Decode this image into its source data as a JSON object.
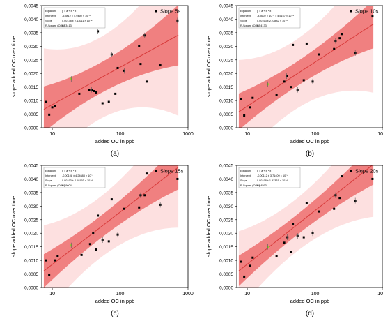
{
  "figure": {
    "panels": [
      {
        "caption": "(a)",
        "legend": "Slope 5s",
        "stats": {
          "equation": "y = a + b * x",
          "rows": [
            {
              "label": "Equation",
              "value": "y = a + b * x"
            },
            {
              "label": "Intercept",
              "value": "-5.3e12 ± 5.9460 × 10⁻⁴"
            },
            {
              "label": "Slope",
              "value": "0.00138 ± 2.13011 × 10⁻⁴"
            },
            {
              "label": "R-Square (COD)",
              "value": "0.53413"
            }
          ]
        }
      },
      {
        "caption": "(b)",
        "legend": "Slope 10s",
        "stats": {
          "rows": [
            {
              "label": "Equation",
              "value": "y = a + b * x"
            },
            {
              "label": "Intercept",
              "value": "-8.3602 × 10⁻⁴ ± 4.5167 × 10⁻⁴"
            },
            {
              "label": "Slope",
              "value": "0.00163 ± 2.72882 × 10⁻⁴"
            },
            {
              "label": "R-Square (COD)",
              "value": "0.74133"
            }
          ]
        }
      },
      {
        "caption": "(c)",
        "legend": "Slope 15s",
        "stats": {
          "rows": [
            {
              "label": "Equation",
              "value": "y = a + b * x"
            },
            {
              "label": "Intercept",
              "value": "-0.00108 ± 4.24688 × 10⁻⁴"
            },
            {
              "label": "Slope",
              "value": "0.00193 ± 2.19193 × 10⁻⁴"
            },
            {
              "label": "R-Square (COD)",
              "value": "0.79604"
            }
          ]
        }
      },
      {
        "caption": "(d)",
        "legend": "Slope 20s",
        "stats": {
          "rows": [
            {
              "label": "Equation",
              "value": "y = a + b * x"
            },
            {
              "label": "Intercept",
              "value": "-0.00112 ± 3.71409 × 10⁻⁴"
            },
            {
              "label": "Slope",
              "value": "0.00198 ± 1.92331 × 10⁻⁴"
            },
            {
              "label": "R-Square (COD)",
              "value": "0.84593"
            }
          ]
        }
      }
    ]
  },
  "colors": {
    "confidence_band": "#f08080",
    "prediction_band": "#fde0e0",
    "fit_line": "#d83a3a",
    "points": "#000000",
    "highlight_point": "#9acd32"
  },
  "chart_data": [
    {
      "type": "scatter",
      "xlabel": "added OC in ppb",
      "ylabel": "slope added OC over time",
      "xscale": "log",
      "xlim": [
        7,
        1000
      ],
      "ylim": [
        0,
        0.0045
      ],
      "xticks": [
        10,
        100,
        1000
      ],
      "xtick_labels": [
        "10",
        "100",
        "1000"
      ],
      "yticks": [
        0,
        0.0005,
        0.001,
        0.0015,
        0.002,
        0.0025,
        0.003,
        0.0035,
        0.004,
        0.0045
      ],
      "ytick_labels": [
        "0,0000",
        "0,0005",
        "0,0010",
        "0,0015",
        "0,0020",
        "0,0025",
        "0,0030",
        "0,0035",
        "0,0040",
        "0,0045"
      ],
      "series": [
        {
          "name": "Slope 5s",
          "x": [
            8,
            9,
            10,
            11,
            19,
            25,
            35,
            38,
            41,
            44,
            47,
            55,
            68,
            75,
            85,
            92,
            115,
            190,
            200,
            230,
            245,
            390,
            700
          ],
          "y": [
            0.00095,
            0.00048,
            0.00075,
            0.0008,
            0.0018,
            0.00125,
            0.0014,
            0.0014,
            0.00135,
            0.0013,
            0.00355,
            0.0009,
            0.00095,
            0.0027,
            0.00125,
            0.0022,
            0.0021,
            0.003,
            0.00235,
            0.0034,
            0.0017,
            0.0023,
            0.00395
          ]
        },
        {
          "name": "Slope 10s",
          "x": [
            8,
            9,
            11,
            12,
            20,
            27,
            35,
            38,
            44,
            47,
            55,
            68,
            75,
            92,
            115,
            190,
            200,
            230,
            245,
            390,
            700
          ],
          "y": [
            0.00105,
            0.00045,
            0.00075,
            0.0011,
            0.0016,
            0.0012,
            0.0017,
            0.0019,
            0.0015,
            0.00305,
            0.0014,
            0.00175,
            0.0031,
            0.0017,
            0.0027,
            0.0029,
            0.0032,
            0.0033,
            0.00345,
            0.00275,
            0.0041
          ]
        },
        {
          "name": "Slope 15s",
          "x": [
            8,
            9,
            11,
            12,
            19,
            27,
            36,
            40,
            44,
            47,
            55,
            68,
            75,
            92,
            115,
            190,
            200,
            230,
            245,
            390,
            700
          ],
          "y": [
            0.001,
            0.00045,
            0.001,
            0.00115,
            0.00155,
            0.0012,
            0.0016,
            0.002,
            0.0014,
            0.00265,
            0.00175,
            0.0017,
            0.00325,
            0.00195,
            0.0029,
            0.00295,
            0.0034,
            0.0034,
            0.0042,
            0.00305,
            0.004
          ]
        },
        {
          "name": "Slope 20s",
          "x": [
            8,
            9,
            11,
            12,
            20,
            27,
            35,
            39,
            44,
            47,
            55,
            68,
            75,
            92,
            115,
            190,
            200,
            230,
            245,
            390,
            700
          ],
          "y": [
            0.00095,
            0.0004,
            0.0008,
            0.0011,
            0.0015,
            0.00115,
            0.00165,
            0.00185,
            0.0013,
            0.00235,
            0.0019,
            0.00185,
            0.0031,
            0.002,
            0.0028,
            0.0029,
            0.0034,
            0.0033,
            0.0041,
            0.0032,
            0.004
          ]
        }
      ]
    }
  ]
}
